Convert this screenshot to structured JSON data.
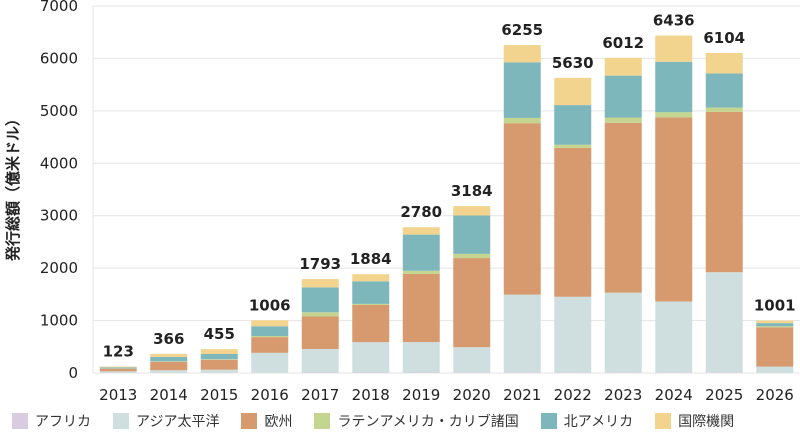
{
  "chart_data": {
    "type": "bar",
    "stacked": true,
    "ylabel": "発行総額（億米ドル）",
    "ylim": [
      0,
      7000
    ],
    "yticks": [
      0,
      1000,
      2000,
      3000,
      4000,
      5000,
      6000,
      7000
    ],
    "categories": [
      "2013",
      "2014",
      "2015",
      "2016",
      "2017",
      "2018",
      "2019",
      "2020",
      "2021",
      "2022",
      "2023",
      "2024",
      "2025",
      "2026"
    ],
    "totals": [
      123,
      366,
      455,
      1006,
      1793,
      1884,
      2780,
      3184,
      6255,
      5630,
      6012,
      6436,
      6104,
      1001
    ],
    "series": [
      {
        "name": "アフリカ",
        "color": "#d8cce0",
        "values": [
          2,
          3,
          3,
          5,
          8,
          8,
          10,
          12,
          15,
          14,
          13,
          14,
          12,
          2
        ]
      },
      {
        "name": "アジア太平洋",
        "color": "#cfdfe0",
        "values": [
          30,
          50,
          60,
          380,
          450,
          580,
          580,
          480,
          1480,
          1440,
          1520,
          1350,
          1910,
          120
        ]
      },
      {
        "name": "欧州",
        "color": "#d69a6e",
        "values": [
          50,
          160,
          190,
          300,
          620,
          710,
          1300,
          1700,
          3270,
          2840,
          3240,
          3510,
          3060,
          750
        ]
      },
      {
        "name": "ラテンアメリカ・カリブ諸国",
        "color": "#c3d58e",
        "values": [
          5,
          10,
          10,
          20,
          80,
          20,
          60,
          80,
          100,
          60,
          100,
          100,
          80,
          20
        ]
      },
      {
        "name": "北アメリカ",
        "color": "#7db7bc",
        "values": [
          20,
          83,
          100,
          186,
          475,
          431,
          690,
          732,
          1060,
          756,
          799,
          962,
          652,
          59
        ]
      },
      {
        "name": "国際機関",
        "color": "#f2d48e",
        "values": [
          16,
          60,
          92,
          115,
          160,
          135,
          140,
          180,
          330,
          520,
          340,
          500,
          390,
          50
        ]
      }
    ]
  }
}
